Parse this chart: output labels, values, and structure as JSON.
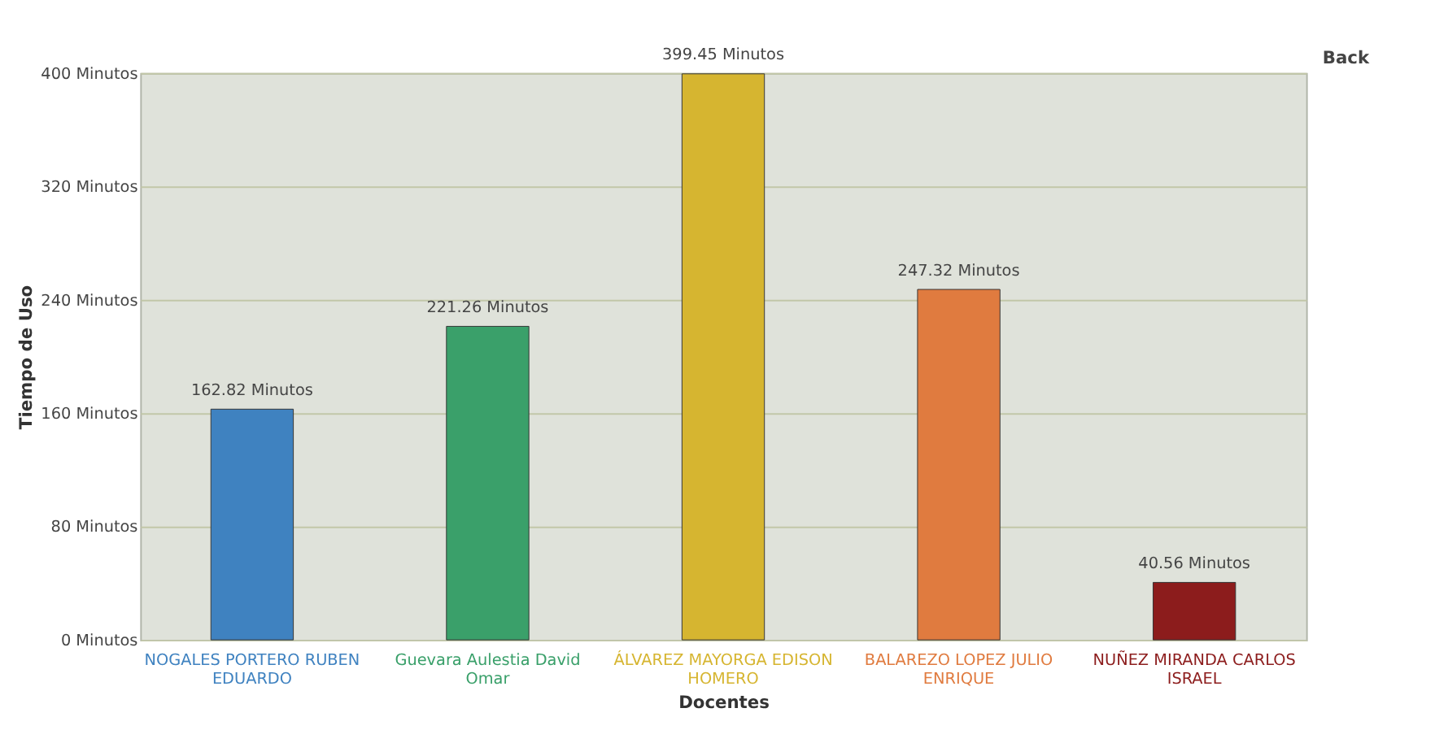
{
  "chart_data": {
    "type": "bar",
    "categories": [
      "NOGALES PORTERO RUBEN EDUARDO",
      "Guevara Aulestia David Omar",
      "ÁLVAREZ MAYORGA EDISON HOMERO",
      "BALAREZO LOPEZ JULIO ENRIQUE",
      "NUÑEZ MIRANDA CARLOS ISRAEL"
    ],
    "values": [
      162.82,
      221.26,
      399.45,
      247.32,
      40.56
    ],
    "colors": [
      "#3f82c0",
      "#3aa06a",
      "#d6b530",
      "#e07b3f",
      "#8c1c1c"
    ],
    "value_labels": [
      "162.82 Minutos",
      "221.26 Minutos",
      "399.45 Minutos",
      "247.32 Minutos",
      "40.56 Minutos"
    ],
    "xlabel": "Docentes",
    "ylabel": "Tiempo de Uso",
    "ylim": [
      0,
      400
    ],
    "yticks": [
      {
        "value": 0,
        "label": "0 Minutos"
      },
      {
        "value": 80,
        "label": "80 Minutos"
      },
      {
        "value": 160,
        "label": "160 Minutos"
      },
      {
        "value": 240,
        "label": "240 Minutos"
      },
      {
        "value": 320,
        "label": "320 Minutos"
      },
      {
        "value": 400,
        "label": "400 Minutos"
      }
    ],
    "grid": "y",
    "annotations": [
      "Back"
    ]
  }
}
